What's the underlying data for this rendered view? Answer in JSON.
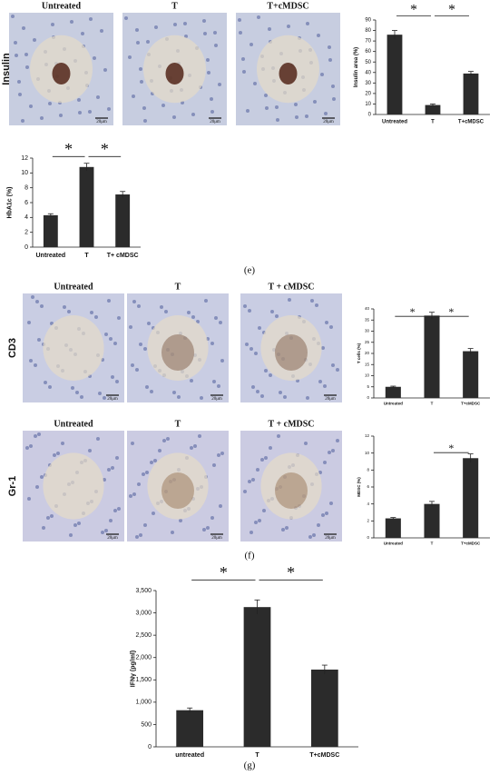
{
  "figure": {
    "rows": [
      {
        "label": "Insulin",
        "images": [
          "Untreated",
          "T",
          "T+cMDSC"
        ],
        "scale": "20μm"
      },
      {
        "label": "CD3",
        "images": [
          "Untreated",
          "T",
          "T + cMDSC"
        ],
        "scale": "20μm"
      },
      {
        "label": "Gr-1",
        "images": [
          "Untreated",
          "T",
          "T + cMDSC"
        ],
        "scale": "20μm"
      }
    ],
    "panel_labels": [
      "(e)",
      "(f)",
      "(g)"
    ]
  },
  "chart_data": [
    {
      "type": "bar",
      "y_label": "Insulin area (%)",
      "categories": [
        "Untreated",
        "T",
        "T+cMDSC"
      ],
      "values": [
        76,
        9,
        39
      ],
      "errors": [
        4,
        1,
        2
      ],
      "color": "#2b2b2b",
      "ylim": [
        0,
        90
      ],
      "yticks": [
        0,
        10,
        20,
        30,
        40,
        50,
        60,
        70,
        80,
        90
      ],
      "annotations": [
        "*",
        "*"
      ]
    },
    {
      "type": "bar",
      "y_label": "HbA1c (%)",
      "categories": [
        "Untreated",
        "T",
        "T+ cMDSC"
      ],
      "values": [
        4.3,
        10.8,
        7.1
      ],
      "errors": [
        0.2,
        0.5,
        0.4
      ],
      "color": "#2b2b2b",
      "ylim": [
        0,
        12
      ],
      "yticks": [
        0,
        2,
        4,
        6,
        8,
        10,
        12
      ],
      "annotations": [
        "*",
        "*"
      ]
    },
    {
      "type": "bar",
      "y_label": "T cells (%)",
      "categories": [
        "Untreated",
        "T",
        "T+cMDSC"
      ],
      "values": [
        5,
        37,
        21
      ],
      "errors": [
        0.3,
        1.5,
        1.2
      ],
      "color": "#2b2b2b",
      "ylim": [
        0,
        40
      ],
      "yticks": [
        0,
        5,
        10,
        15,
        20,
        25,
        30,
        35,
        40
      ],
      "annotations": [
        "*",
        "*"
      ]
    },
    {
      "type": "bar",
      "y_label": "MDSC (%)",
      "categories": [
        "Untreated",
        "T",
        "T+cMDSC"
      ],
      "values": [
        2.3,
        4,
        9.4
      ],
      "errors": [
        0.1,
        0.3,
        0.5
      ],
      "color": "#2b2b2b",
      "ylim": [
        0,
        12
      ],
      "yticks": [
        0,
        2,
        4,
        6,
        8,
        10,
        12
      ],
      "annotations": [
        "*"
      ]
    },
    {
      "type": "bar",
      "y_label": "IFNγ (pg/ml)",
      "categories": [
        "untreated",
        "T",
        "T+cMDSC"
      ],
      "values": [
        820,
        3130,
        1730
      ],
      "errors": [
        50,
        160,
        100
      ],
      "color": "#2b2b2b",
      "ylim": [
        0,
        3500
      ],
      "yticks": [
        0,
        500,
        {
          "value": 1000,
          "label": "1,000"
        },
        {
          "value": 1500,
          "label": "1,500"
        },
        {
          "value": 2000,
          "label": "2,000"
        },
        {
          "value": 2500,
          "label": "2,500"
        },
        {
          "value": 3000,
          "label": "3,000"
        },
        {
          "value": 3500,
          "label": "3,500"
        }
      ],
      "annotations": [
        "*",
        "*"
      ]
    }
  ]
}
